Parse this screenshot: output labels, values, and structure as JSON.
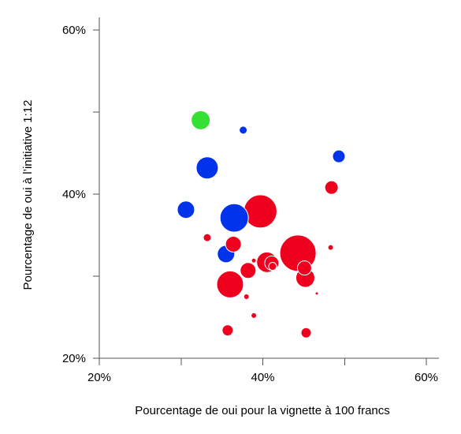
{
  "colors": {
    "red": "#f0001f",
    "blue": "#0033ea",
    "green": "#33e033",
    "axis": "#555555"
  },
  "chart_data": {
    "type": "scatter",
    "xlabel": "Pourcentage de oui pour la vignette à 100 francs",
    "ylabel": "Pourcentage de oui à l’initiative 1:12",
    "xlim": [
      20,
      60
    ],
    "ylim": [
      20,
      60
    ],
    "x_ticks": [
      20,
      30,
      40,
      50,
      60
    ],
    "y_ticks": [
      20,
      30,
      40,
      50,
      60
    ],
    "x_tick_labels": [
      "20%",
      "",
      "40%",
      "",
      "60%"
    ],
    "y_tick_labels": [
      "20%",
      "",
      "40%",
      "",
      "60%"
    ],
    "grid": false,
    "marker": "bubble",
    "points": [
      {
        "x": 44.3,
        "y": 32.8,
        "size": 23,
        "color": "red"
      },
      {
        "x": 39.7,
        "y": 37.9,
        "size": 21,
        "color": "red"
      },
      {
        "x": 36.5,
        "y": 37.1,
        "size": 18,
        "color": "blue"
      },
      {
        "x": 36.0,
        "y": 29.0,
        "size": 17,
        "color": "red"
      },
      {
        "x": 40.5,
        "y": 31.7,
        "size": 13,
        "color": "red"
      },
      {
        "x": 33.2,
        "y": 43.2,
        "size": 14,
        "color": "blue"
      },
      {
        "x": 45.2,
        "y": 29.8,
        "size": 12,
        "color": "red"
      },
      {
        "x": 32.4,
        "y": 49.0,
        "size": 12,
        "color": "green"
      },
      {
        "x": 35.5,
        "y": 32.7,
        "size": 11,
        "color": "blue"
      },
      {
        "x": 30.6,
        "y": 38.1,
        "size": 11,
        "color": "blue"
      },
      {
        "x": 36.4,
        "y": 33.9,
        "size": 10,
        "color": "red"
      },
      {
        "x": 38.2,
        "y": 30.7,
        "size": 10,
        "color": "red"
      },
      {
        "x": 41.1,
        "y": 31.6,
        "size": 9,
        "color": "red"
      },
      {
        "x": 45.1,
        "y": 31.0,
        "size": 9,
        "color": "red"
      },
      {
        "x": 48.4,
        "y": 40.8,
        "size": 8.5,
        "color": "red"
      },
      {
        "x": 49.3,
        "y": 44.6,
        "size": 8,
        "color": "blue"
      },
      {
        "x": 35.7,
        "y": 23.4,
        "size": 7,
        "color": "red"
      },
      {
        "x": 45.3,
        "y": 23.1,
        "size": 6.5,
        "color": "red"
      },
      {
        "x": 41.2,
        "y": 31.2,
        "size": 5,
        "color": "red"
      },
      {
        "x": 37.6,
        "y": 47.8,
        "size": 5,
        "color": "blue"
      },
      {
        "x": 33.2,
        "y": 34.7,
        "size": 5,
        "color": "red"
      },
      {
        "x": 38.0,
        "y": 27.5,
        "size": 3.5,
        "color": "red"
      },
      {
        "x": 38.9,
        "y": 25.2,
        "size": 3.5,
        "color": "red"
      },
      {
        "x": 48.3,
        "y": 33.5,
        "size": 3.5,
        "color": "red"
      },
      {
        "x": 38.9,
        "y": 31.9,
        "size": 3,
        "color": "red"
      },
      {
        "x": 46.6,
        "y": 27.9,
        "size": 2,
        "color": "red"
      }
    ]
  }
}
